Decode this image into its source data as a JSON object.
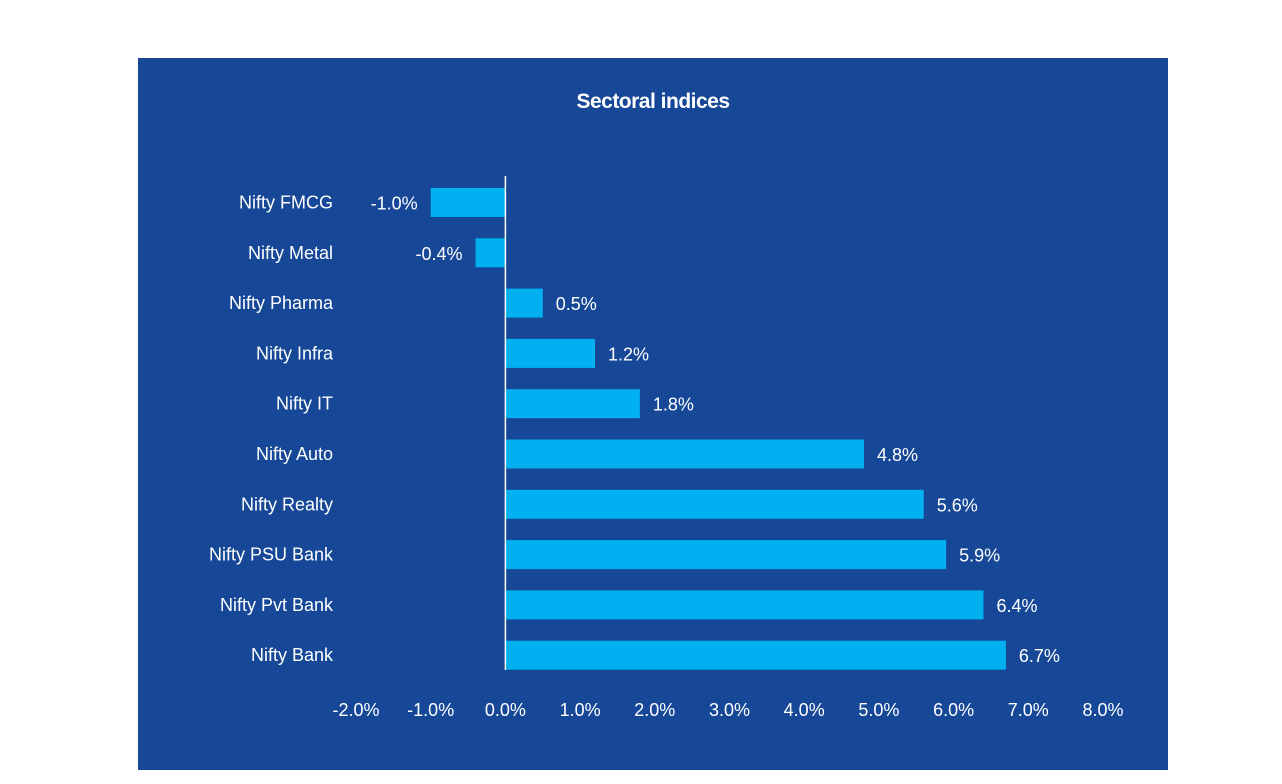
{
  "chart_data": {
    "type": "bar",
    "orientation": "horizontal",
    "title": "Sectoral indices",
    "categories": [
      "Nifty FMCG",
      "Nifty Metal",
      "Nifty Pharma",
      "Nifty Infra",
      "Nifty IT",
      "Nifty Auto",
      "Nifty Realty",
      "Nifty PSU Bank",
      "Nifty Pvt Bank",
      "Nifty Bank"
    ],
    "values": [
      -1.0,
      -0.4,
      0.5,
      1.2,
      1.8,
      4.8,
      5.6,
      5.9,
      6.4,
      6.7
    ],
    "data_labels": [
      "-1.0%",
      "-0.4%",
      "0.5%",
      "1.2%",
      "1.8%",
      "4.8%",
      "5.6%",
      "5.9%",
      "6.4%",
      "6.7%"
    ],
    "xlim": [
      -2.0,
      8.0
    ],
    "x_ticks": [
      -2,
      -1,
      0,
      1,
      2,
      3,
      4,
      5,
      6,
      7,
      8
    ],
    "x_tick_labels": [
      "-2.0%",
      "-1.0%",
      "0.0%",
      "1.0%",
      "2.0%",
      "3.0%",
      "4.0%",
      "5.0%",
      "6.0%",
      "7.0%",
      "8.0%"
    ],
    "xlabel": "",
    "ylabel": "",
    "grid": false,
    "legend": "none",
    "colors": {
      "background": "#164897",
      "bar": "#00b0f0",
      "text": "#ffffff",
      "axis": "#ffffff"
    }
  }
}
